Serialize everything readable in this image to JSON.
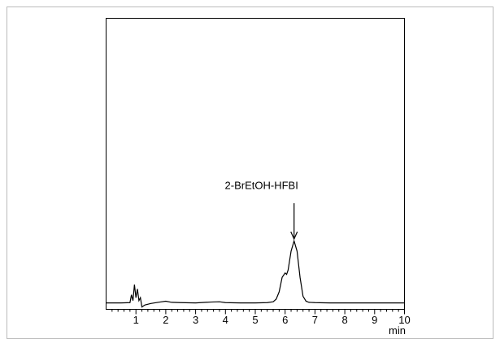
{
  "chart_data": {
    "type": "line",
    "annotation": "2-BrEtOH-HFBI",
    "annotation_x": 6.3,
    "x_label": "min",
    "xlim": [
      0,
      10
    ],
    "xticks": [
      1,
      2,
      3,
      4,
      5,
      6,
      7,
      8,
      9,
      10
    ],
    "xminorticks": [
      0.2,
      0.4,
      0.6,
      0.8,
      1.2,
      1.4,
      1.6,
      1.8,
      2.2,
      2.4,
      2.6,
      2.8,
      3.2,
      3.4,
      3.6,
      3.8,
      4.2,
      4.4,
      4.6,
      4.8,
      5.2,
      5.4,
      5.6,
      5.8,
      6.2,
      6.4,
      6.6,
      6.8,
      7.2,
      7.4,
      7.6,
      7.8,
      8.2,
      8.4,
      8.6,
      8.8,
      9.2,
      9.4,
      9.6,
      9.8
    ],
    "ylim": [
      0,
      100
    ],
    "color": "#000000",
    "x": [
      0,
      0.5,
      0.8,
      0.85,
      0.9,
      0.95,
      1.0,
      1.05,
      1.1,
      1.15,
      1.2,
      1.3,
      1.5,
      1.8,
      2.0,
      2.2,
      2.5,
      3.0,
      3.5,
      3.8,
      4.0,
      4.5,
      5.0,
      5.4,
      5.6,
      5.7,
      5.8,
      5.9,
      6.0,
      6.05,
      6.1,
      6.2,
      6.3,
      6.4,
      6.5,
      6.6,
      6.7,
      6.8,
      7.0,
      7.5,
      8,
      9,
      10
    ],
    "values": [
      2.2,
      2.2,
      2.3,
      5,
      3,
      8.5,
      4,
      7,
      3,
      4,
      0.8,
      1.5,
      2.0,
      2.5,
      2.8,
      2.4,
      2.3,
      2.2,
      2.5,
      2.6,
      2.3,
      2.2,
      2.2,
      2.3,
      2.6,
      3.5,
      6,
      11,
      12.5,
      12,
      13.5,
      20,
      23.5,
      20,
      11,
      4.5,
      2.8,
      2.4,
      2.3,
      2.2,
      2.2,
      2.2,
      2.2
    ]
  }
}
